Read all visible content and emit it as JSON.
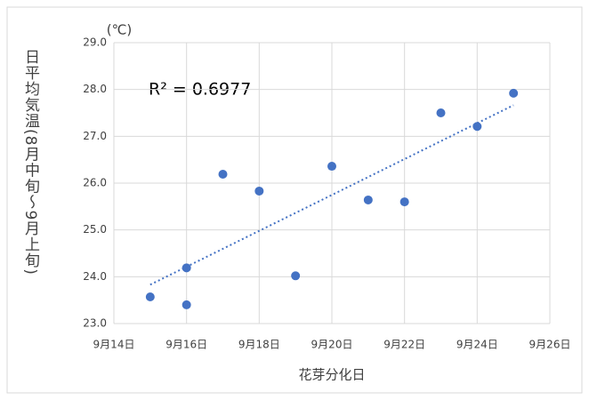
{
  "chart_data": {
    "type": "scatter",
    "x_label": "花芽分化日",
    "y_label": "日平均気温(8月中旬～9月上旬)",
    "y_unit": "(℃)",
    "annotation": "R² = 0.6977",
    "trendline": true,
    "color": "#4472c4",
    "grid": true,
    "x": [
      15,
      16,
      16,
      17,
      18,
      19,
      20,
      21,
      22,
      23,
      24,
      25
    ],
    "values": [
      23.57,
      24.19,
      23.4,
      26.19,
      25.83,
      24.02,
      26.36,
      25.64,
      25.6,
      27.5,
      27.21,
      27.92
    ],
    "xlim": [
      14,
      26
    ],
    "xticks": [
      {
        "value": 14,
        "label": "9月14日"
      },
      {
        "value": 16,
        "label": "9月16日"
      },
      {
        "value": 18,
        "label": "9月18日"
      },
      {
        "value": 20,
        "label": "9月20日"
      },
      {
        "value": 22,
        "label": "9月22日"
      },
      {
        "value": 24,
        "label": "9月24日"
      },
      {
        "value": 26,
        "label": "9月26日"
      }
    ],
    "ylim": [
      23,
      29
    ],
    "yticks": [
      {
        "value": 23,
        "label": "23.0"
      },
      {
        "value": 24,
        "label": "24.0"
      },
      {
        "value": 25,
        "label": "25.0"
      },
      {
        "value": 26,
        "label": "26.0"
      },
      {
        "value": 27,
        "label": "27.0"
      },
      {
        "value": 28,
        "label": "28.0"
      },
      {
        "value": 29,
        "label": "29.0"
      }
    ]
  }
}
